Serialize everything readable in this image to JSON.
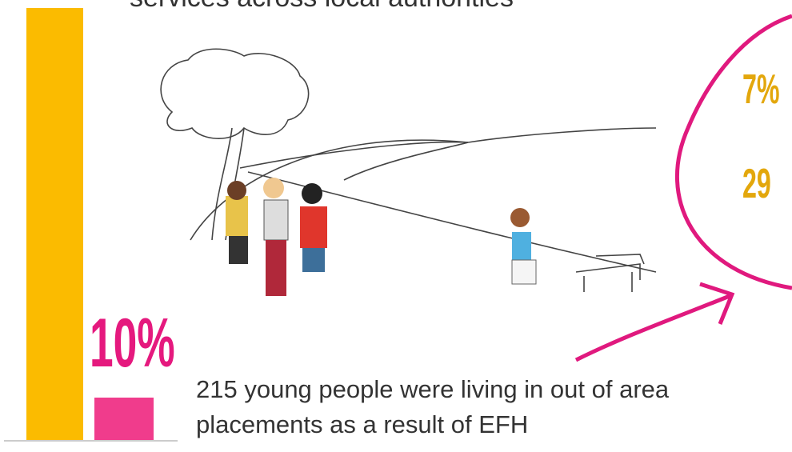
{
  "header": {
    "text": "services across local authorities"
  },
  "left_stat": {
    "label": "10%"
  },
  "right_stats": {
    "first": "7%",
    "second": "29"
  },
  "caption": {
    "lines": [
      "215 young people were living in out of area",
      "placements as a result of EFH"
    ]
  }
}
